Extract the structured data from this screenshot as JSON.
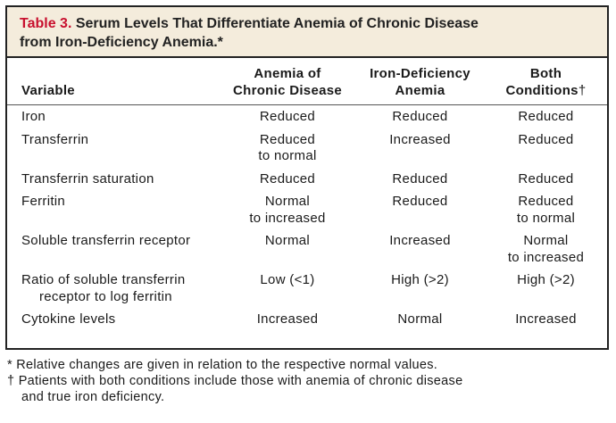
{
  "table": {
    "number": "Table 3.",
    "title_line1": " Serum Levels That Differentiate Anemia of Chronic Disease",
    "title_line2": "from Iron-Deficiency Anemia.*",
    "headers": {
      "variable": "Variable",
      "col1_line1": "Anemia of",
      "col1_line2": "Chronic Disease",
      "col2_line1": "Iron-Deficiency",
      "col2_line2": "Anemia",
      "col3_line1": "Both",
      "col3_line2": "Conditions",
      "col3_mark": "†"
    },
    "rows": [
      {
        "variable_l1": "Iron",
        "variable_l2": "",
        "acd_l1": "Reduced",
        "acd_l2": "",
        "ida_l1": "Reduced",
        "ida_l2": "",
        "both_l1": "Reduced",
        "both_l2": ""
      },
      {
        "variable_l1": "Transferrin",
        "variable_l2": "",
        "acd_l1": "Reduced",
        "acd_l2": "to normal",
        "ida_l1": "Increased",
        "ida_l2": "",
        "both_l1": "Reduced",
        "both_l2": ""
      },
      {
        "variable_l1": "Transferrin saturation",
        "variable_l2": "",
        "acd_l1": "Reduced",
        "acd_l2": "",
        "ida_l1": "Reduced",
        "ida_l2": "",
        "both_l1": "Reduced",
        "both_l2": ""
      },
      {
        "variable_l1": "Ferritin",
        "variable_l2": "",
        "acd_l1": "Normal",
        "acd_l2": "to increased",
        "ida_l1": "Reduced",
        "ida_l2": "",
        "both_l1": "Reduced",
        "both_l2": "to normal"
      },
      {
        "variable_l1": "Soluble transferrin receptor",
        "variable_l2": "",
        "acd_l1": "Normal",
        "acd_l2": "",
        "ida_l1": "Increased",
        "ida_l2": "",
        "both_l1": "Normal",
        "both_l2": "to increased"
      },
      {
        "variable_l1": "Ratio of soluble transferrin",
        "variable_l2": "receptor to log ferritin",
        "acd_l1": "Low (<1)",
        "acd_l2": "",
        "ida_l1": "High (>2)",
        "ida_l2": "",
        "both_l1": "High (>2)",
        "both_l2": ""
      },
      {
        "variable_l1": "Cytokine levels",
        "variable_l2": "",
        "acd_l1": "Increased",
        "acd_l2": "",
        "ida_l1": "Normal",
        "ida_l2": "",
        "both_l1": "Increased",
        "both_l2": ""
      }
    ]
  },
  "footnotes": {
    "note1": "* Relative changes are given in relation to the respective normal values.",
    "note2_line1": "† Patients with both conditions include those with anemia of chronic disease",
    "note2_line2": "and true iron deficiency."
  },
  "colors": {
    "title_background": "#f4ecdc",
    "table_number": "#c8102e",
    "border": "#222222"
  }
}
